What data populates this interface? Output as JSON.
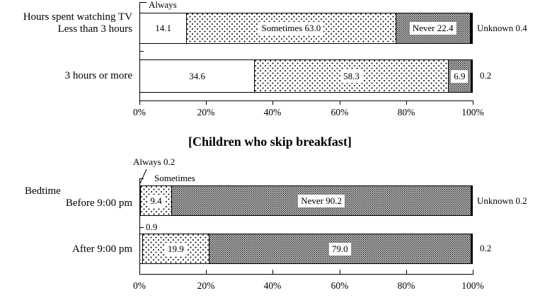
{
  "title": "[Children who skip breakfast]",
  "colors": {
    "foreground": "#000000",
    "background": "#ffffff"
  },
  "chart_data": {
    "type": "bar",
    "stacked": true,
    "orientation": "horizontal",
    "unit": "percent",
    "x_axis": {
      "ticks": [
        "0%",
        "20%",
        "40%",
        "60%",
        "80%",
        "100%"
      ],
      "range": [
        0,
        100
      ],
      "grid": false
    },
    "legend_position": "none",
    "patterns": {
      "Always": "white",
      "Sometimes": "light-dots",
      "Never": "dense-dots",
      "Unknown": "solid-black"
    },
    "title": "[Children who skip breakfast]",
    "charts": [
      {
        "group_label": "Hours spent watching TV",
        "rows": [
          {
            "category": "Less than 3 hours",
            "above_label": "Always",
            "outside_label": "Unknown 0.4",
            "segments": [
              {
                "series": "Always",
                "value": 14.1,
                "inside_label": "14.1"
              },
              {
                "series": "Sometimes",
                "value": 63.0,
                "inside_label": "Sometimes 63.0"
              },
              {
                "series": "Never",
                "value": 22.4,
                "inside_label": "Never 22.4"
              },
              {
                "series": "Unknown",
                "value": 0.4,
                "inside_label": ""
              }
            ]
          },
          {
            "category": "3 hours or more",
            "above_label": "",
            "outside_label": "0.2",
            "segments": [
              {
                "series": "Always",
                "value": 34.6,
                "inside_label": "34.6"
              },
              {
                "series": "Sometimes",
                "value": 58.3,
                "inside_label": "58.3"
              },
              {
                "series": "Never",
                "value": 6.9,
                "inside_label": "6.9"
              },
              {
                "series": "Unknown",
                "value": 0.2,
                "inside_label": ""
              }
            ]
          }
        ]
      },
      {
        "group_label": "Bedtime",
        "rows": [
          {
            "category": "Before 9:00 pm",
            "callout_label": "Always 0.2",
            "above_label": "Sometimes",
            "outside_label": "Unknown 0.2",
            "segments": [
              {
                "series": "Always",
                "value": 0.2,
                "inside_label": ""
              },
              {
                "series": "Sometimes",
                "value": 9.4,
                "inside_label": "9.4"
              },
              {
                "series": "Never",
                "value": 90.2,
                "inside_label": "Never 90.2"
              },
              {
                "series": "Unknown",
                "value": 0.2,
                "inside_label": ""
              }
            ]
          },
          {
            "category": "After 9:00 pm",
            "above_label": "0.9",
            "outside_label": "0.2",
            "segments": [
              {
                "series": "Always",
                "value": 0.9,
                "inside_label": ""
              },
              {
                "series": "Sometimes",
                "value": 19.9,
                "inside_label": "19.9"
              },
              {
                "series": "Never",
                "value": 79.0,
                "inside_label": "79.0"
              },
              {
                "series": "Unknown",
                "value": 0.2,
                "inside_label": ""
              }
            ]
          }
        ]
      }
    ]
  }
}
